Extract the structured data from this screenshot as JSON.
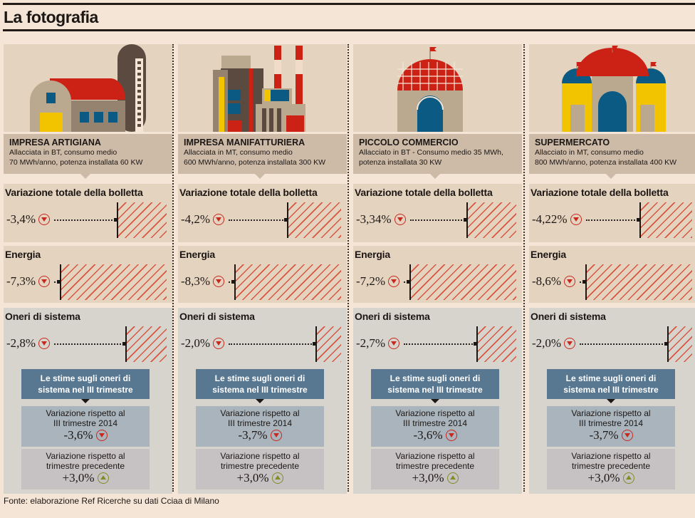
{
  "title": "La fotografia",
  "source": "Fonte: elaborazione Ref Ricerche su dati Cciaa di Milano",
  "section_labels": {
    "total": "Variazione totale della bolletta",
    "energy": "Energia",
    "charges": "Oneri di sistema"
  },
  "estimates_title": "Le stime sugli oneri di sistema nel III trimestre",
  "estimate_labels": {
    "vs_2014": "Variazione rispetto al III trimestre 2014",
    "vs_prev": "Variazione rispetto al trimestre precedente"
  },
  "columns": [
    {
      "name": "IMPRESA ARTIGIANA",
      "desc1": "Allacciata in BT, consumo medio",
      "desc2": "70 MWh/anno, potenza installata 60 KW",
      "total": "-3,4%",
      "energy": "-7,3%",
      "charges": "-2,8%",
      "vs_2014": "-3,6%",
      "vs_prev": "+3,0%"
    },
    {
      "name": "IMPRESA MANIFATTURIERA",
      "desc1": "Allacciata in MT, consumo medio",
      "desc2": "600 MWh/anno, potenza installata 300 KW",
      "total": "-4,2%",
      "energy": "-8,3%",
      "charges": "-2,0%",
      "vs_2014": "-3,7%",
      "vs_prev": "+3,0%"
    },
    {
      "name": "PICCOLO COMMERCIO",
      "desc1": "Allacciato in BT - Consumo medio 35 MWh,",
      "desc2": "potenza installata 30 KW",
      "total": "-3,34%",
      "energy": "-7,2%",
      "charges": "-2,7%",
      "vs_2014": "-3,6%",
      "vs_prev": "+3,0%"
    },
    {
      "name": "SUPERMERCATO",
      "desc1": "Allacciato in MT, consumo medio",
      "desc2": "800 MWh/anno, potenza installata 400 KW",
      "total": "-4,22%",
      "energy": "-8,6%",
      "charges": "-2,0%",
      "vs_2014": "-3,7%",
      "vs_prev": "+3,0%"
    }
  ],
  "chart_data": {
    "type": "bar",
    "title": "La fotografia",
    "categories": [
      "Impresa artigiana",
      "Impresa manifatturiera",
      "Piccolo commercio",
      "Supermercato"
    ],
    "series": [
      {
        "name": "Variazione totale della bolletta",
        "values": [
          -3.4,
          -4.2,
          -3.34,
          -4.22
        ]
      },
      {
        "name": "Energia",
        "values": [
          -7.3,
          -8.3,
          -7.2,
          -8.6
        ]
      },
      {
        "name": "Oneri di sistema",
        "values": [
          -2.8,
          -2.0,
          -2.7,
          -2.0
        ]
      },
      {
        "name": "Oneri III trim. vs III trim. 2014",
        "values": [
          -3.6,
          -3.7,
          -3.6,
          -3.7
        ]
      },
      {
        "name": "Oneri III trim. vs trimestre precedente",
        "values": [
          3.0,
          3.0,
          3.0,
          3.0
        ]
      }
    ],
    "unit": "%"
  },
  "colors": {
    "hatch": "#d9553f",
    "down": "#c8281e",
    "up": "#7f8f26",
    "estimate_header": "#587892"
  }
}
